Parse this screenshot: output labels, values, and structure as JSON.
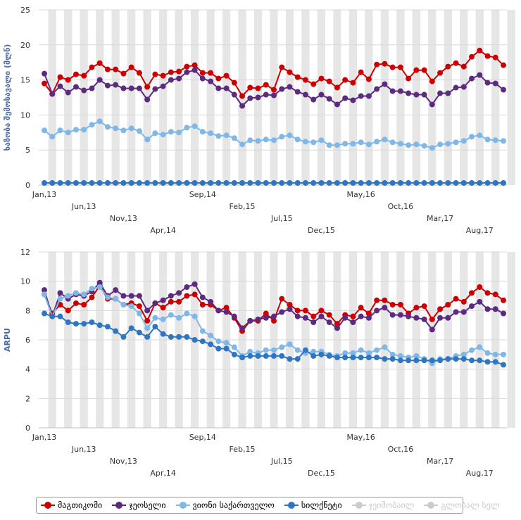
{
  "chart_data": [
    {
      "type": "line",
      "title": "",
      "ylabel": "ხაზობა შემოსავალი (მლნ)",
      "ylim": [
        0,
        25
      ],
      "yticks": [
        0,
        5,
        10,
        15,
        20,
        25
      ],
      "x_tick_labels": [
        "Jan,13",
        "Jun,13",
        "Nov,13",
        "Apr,14",
        "Sep,14",
        "Feb,15",
        "Jul,15",
        "Dec,15",
        "May,16",
        "Oct,16",
        "Mar,17",
        "Aug,17"
      ],
      "series": [
        {
          "name": "მაგთიკომი",
          "color": "#cc0000",
          "values": [
            14.5,
            13.0,
            15.4,
            15.0,
            15.8,
            15.6,
            16.8,
            17.4,
            16.5,
            16.5,
            15.9,
            16.8,
            16.0,
            14.0,
            15.8,
            15.6,
            16.1,
            16.2,
            16.9,
            17.1,
            16.0,
            16.0,
            15.2,
            15.6,
            14.6,
            12.7,
            13.9,
            13.8,
            14.3,
            13.6,
            16.8,
            16.1,
            15.4,
            15.0,
            14.4,
            15.2,
            14.8,
            13.9,
            15.0,
            14.6,
            16.1,
            15.1,
            17.2,
            17.3,
            16.8,
            16.8,
            15.2,
            16.4,
            16.4,
            14.8,
            16.0,
            16.9,
            17.4,
            16.9,
            18.3,
            19.2,
            18.4,
            18.2,
            17.1
          ]
        },
        {
          "name": "ჯეოსელი",
          "color": "#5c2a7e",
          "values": [
            15.9,
            13.0,
            14.1,
            13.2,
            14.0,
            13.5,
            13.8,
            15.0,
            14.2,
            14.3,
            13.8,
            13.8,
            13.8,
            12.2,
            13.7,
            14.1,
            15.0,
            15.2,
            16.1,
            16.4,
            15.2,
            14.8,
            13.8,
            13.8,
            12.9,
            11.3,
            12.4,
            12.5,
            12.9,
            12.8,
            13.7,
            14.0,
            13.3,
            12.9,
            12.2,
            12.9,
            12.3,
            11.5,
            12.4,
            12.1,
            12.7,
            12.7,
            13.7,
            14.4,
            13.4,
            13.4,
            13.1,
            12.9,
            12.9,
            11.5,
            13.1,
            13.1,
            13.9,
            14.0,
            15.2,
            15.7,
            14.6,
            14.5,
            13.6
          ]
        },
        {
          "name": "ვიონი საქართველო",
          "color": "#7fb8e8",
          "values": [
            7.8,
            6.9,
            7.8,
            7.5,
            7.9,
            7.9,
            8.6,
            9.1,
            8.3,
            8.1,
            7.8,
            8.1,
            7.7,
            6.5,
            7.4,
            7.2,
            7.6,
            7.5,
            8.2,
            8.4,
            7.6,
            7.4,
            7.0,
            7.1,
            6.7,
            5.8,
            6.4,
            6.3,
            6.5,
            6.4,
            6.9,
            7.1,
            6.5,
            6.2,
            6.1,
            6.4,
            5.7,
            5.7,
            5.9,
            5.9,
            6.1,
            5.8,
            6.2,
            6.5,
            6.1,
            5.9,
            5.7,
            5.8,
            5.6,
            5.3,
            5.8,
            5.9,
            6.1,
            6.3,
            6.9,
            7.1,
            6.5,
            6.4,
            6.3
          ]
        },
        {
          "name": "სილქნეტი",
          "color": "#2e75c2",
          "values": [
            0.3,
            0.3,
            0.3,
            0.3,
            0.3,
            0.3,
            0.3,
            0.3,
            0.3,
            0.3,
            0.3,
            0.3,
            0.3,
            0.3,
            0.3,
            0.3,
            0.3,
            0.3,
            0.3,
            0.3,
            0.3,
            0.3,
            0.3,
            0.3,
            0.3,
            0.3,
            0.3,
            0.3,
            0.3,
            0.3,
            0.3,
            0.3,
            0.3,
            0.3,
            0.3,
            0.3,
            0.3,
            0.3,
            0.3,
            0.3,
            0.3,
            0.3,
            0.3,
            0.3,
            0.3,
            0.3,
            0.3,
            0.3,
            0.3,
            0.3,
            0.3,
            0.3,
            0.3,
            0.3,
            0.3,
            0.3,
            0.3,
            0.3,
            0.3
          ]
        }
      ]
    },
    {
      "type": "line",
      "title": "",
      "ylabel": "ARPU",
      "ylim": [
        0,
        12
      ],
      "yticks": [
        0,
        2,
        4,
        6,
        8,
        10,
        12
      ],
      "x_tick_labels": [
        "Jan,13",
        "Jun,13",
        "Nov,13",
        "Apr,14",
        "Sep,14",
        "Feb,15",
        "Jul,15",
        "Dec,15",
        "May,16",
        "Oct,16",
        "Mar,17",
        "Aug,17"
      ],
      "series": [
        {
          "name": "მაგთიკომი",
          "color": "#cc0000",
          "values": [
            9.1,
            7.8,
            8.4,
            8.0,
            8.5,
            8.4,
            8.9,
            9.7,
            8.8,
            8.8,
            8.4,
            8.5,
            8.3,
            7.3,
            8.5,
            8.2,
            8.6,
            8.6,
            9.0,
            9.1,
            8.4,
            8.4,
            8.0,
            8.2,
            7.5,
            6.6,
            7.3,
            7.3,
            7.8,
            7.3,
            8.8,
            8.4,
            8.0,
            8.0,
            7.6,
            8.0,
            7.7,
            7.1,
            7.7,
            7.6,
            8.2,
            7.8,
            8.7,
            8.7,
            8.4,
            8.4,
            7.8,
            8.2,
            8.3,
            7.4,
            8.1,
            8.4,
            8.8,
            8.6,
            9.2,
            9.6,
            9.2,
            9.1,
            8.7
          ]
        },
        {
          "name": "ჯეოსელი",
          "color": "#5c2a7e",
          "values": [
            9.4,
            7.6,
            9.2,
            8.8,
            9.1,
            9.0,
            9.3,
            9.9,
            9.0,
            9.4,
            9.0,
            9.0,
            9.0,
            8.0,
            8.5,
            8.7,
            9.0,
            9.2,
            9.6,
            9.8,
            8.9,
            8.6,
            8.0,
            7.9,
            7.6,
            6.8,
            7.3,
            7.4,
            7.5,
            7.6,
            7.9,
            8.1,
            7.6,
            7.5,
            7.2,
            7.6,
            7.2,
            6.8,
            7.5,
            7.2,
            7.6,
            7.5,
            8.0,
            8.2,
            7.7,
            7.7,
            7.6,
            7.5,
            7.4,
            6.7,
            7.5,
            7.5,
            7.9,
            7.9,
            8.3,
            8.6,
            8.1,
            8.1,
            7.8
          ]
        },
        {
          "name": "ვიონი საქართველო",
          "color": "#7fb8e8",
          "values": [
            9.1,
            7.6,
            8.8,
            9.0,
            9.2,
            9.1,
            9.5,
            9.6,
            8.9,
            8.8,
            8.4,
            8.3,
            7.8,
            6.8,
            7.5,
            7.4,
            7.7,
            7.5,
            7.8,
            7.6,
            6.6,
            6.3,
            5.9,
            5.8,
            5.5,
            4.9,
            5.2,
            5.1,
            5.3,
            5.3,
            5.5,
            5.7,
            5.3,
            5.1,
            5.2,
            5.2,
            5.0,
            4.9,
            5.1,
            5.1,
            5.3,
            5.1,
            5.3,
            5.5,
            5.0,
            4.9,
            4.8,
            4.9,
            4.7,
            4.4,
            4.7,
            4.7,
            4.9,
            5.0,
            5.3,
            5.5,
            5.1,
            5.0,
            5.0
          ]
        },
        {
          "name": "სილქნეტი",
          "color": "#2e75c2",
          "values": [
            7.8,
            7.6,
            7.6,
            7.2,
            7.1,
            7.1,
            7.2,
            7.0,
            6.9,
            6.6,
            6.2,
            6.8,
            6.5,
            6.2,
            6.9,
            6.4,
            6.2,
            6.2,
            6.2,
            6.0,
            5.9,
            5.7,
            5.4,
            5.4,
            5.0,
            4.8,
            4.9,
            4.9,
            4.9,
            4.9,
            4.9,
            4.7,
            4.7,
            5.3,
            4.9,
            5.0,
            4.9,
            4.8,
            4.8,
            4.8,
            4.8,
            4.8,
            4.8,
            4.7,
            4.7,
            4.6,
            4.6,
            4.6,
            4.6,
            4.6,
            4.6,
            4.7,
            4.7,
            4.7,
            4.6,
            4.6,
            4.5,
            4.5,
            4.3
          ]
        }
      ]
    }
  ],
  "legend": [
    {
      "label": "მაგთიკომი",
      "color": "#cc0000",
      "active": true
    },
    {
      "label": "ჯეოსელი",
      "color": "#5c2a7e",
      "active": true
    },
    {
      "label": "ვიონი საქართველო",
      "color": "#7fb8e8",
      "active": true
    },
    {
      "label": "სილქნეტი",
      "color": "#2e75c2",
      "active": true
    },
    {
      "label": "ჯეიმობაილ",
      "color": "#cccccc",
      "active": false
    },
    {
      "label": "გლობალ სელ",
      "color": "#cccccc",
      "active": false
    }
  ]
}
